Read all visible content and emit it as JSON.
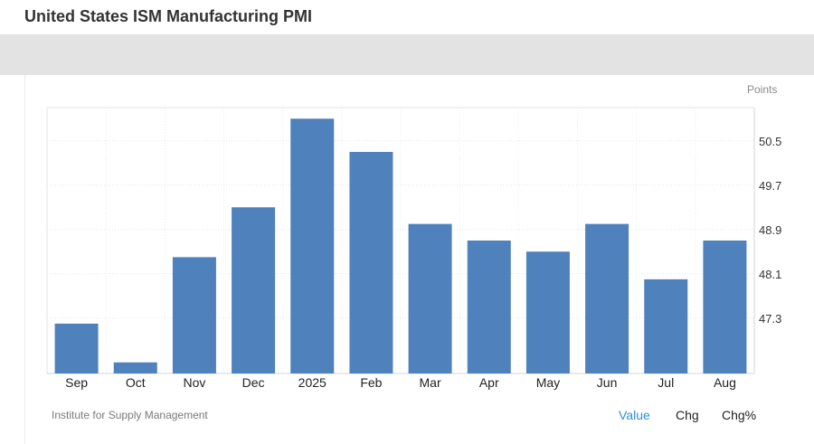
{
  "page": {
    "title": "United States ISM Manufacturing PMI"
  },
  "chart_data": {
    "type": "bar",
    "title": "",
    "xlabel": "",
    "ylabel": "",
    "units": "Points",
    "categories": [
      "Sep",
      "Oct",
      "Nov",
      "Dec",
      "2025",
      "Feb",
      "Mar",
      "Apr",
      "May",
      "Jun",
      "Jul",
      "Aug"
    ],
    "values": [
      47.2,
      46.5,
      48.4,
      49.3,
      50.9,
      50.3,
      49.0,
      48.7,
      48.5,
      49.0,
      48.0,
      48.7
    ],
    "yticks": [
      "47.3",
      "48.1",
      "48.9",
      "49.7",
      "50.5"
    ],
    "ylim": [
      46.3,
      51.1
    ],
    "bar_color": "#4f81bd",
    "grid": true,
    "gridline_color": "#e6e6e6"
  },
  "footer": {
    "source": "Institute for Supply Management",
    "toggles": [
      {
        "label": "Value",
        "active": true
      },
      {
        "label": "Chg",
        "active": false
      },
      {
        "label": "Chg%",
        "active": false
      }
    ]
  },
  "colors": {
    "accent": "#2e8fd3",
    "bar": "#4f81bd"
  }
}
